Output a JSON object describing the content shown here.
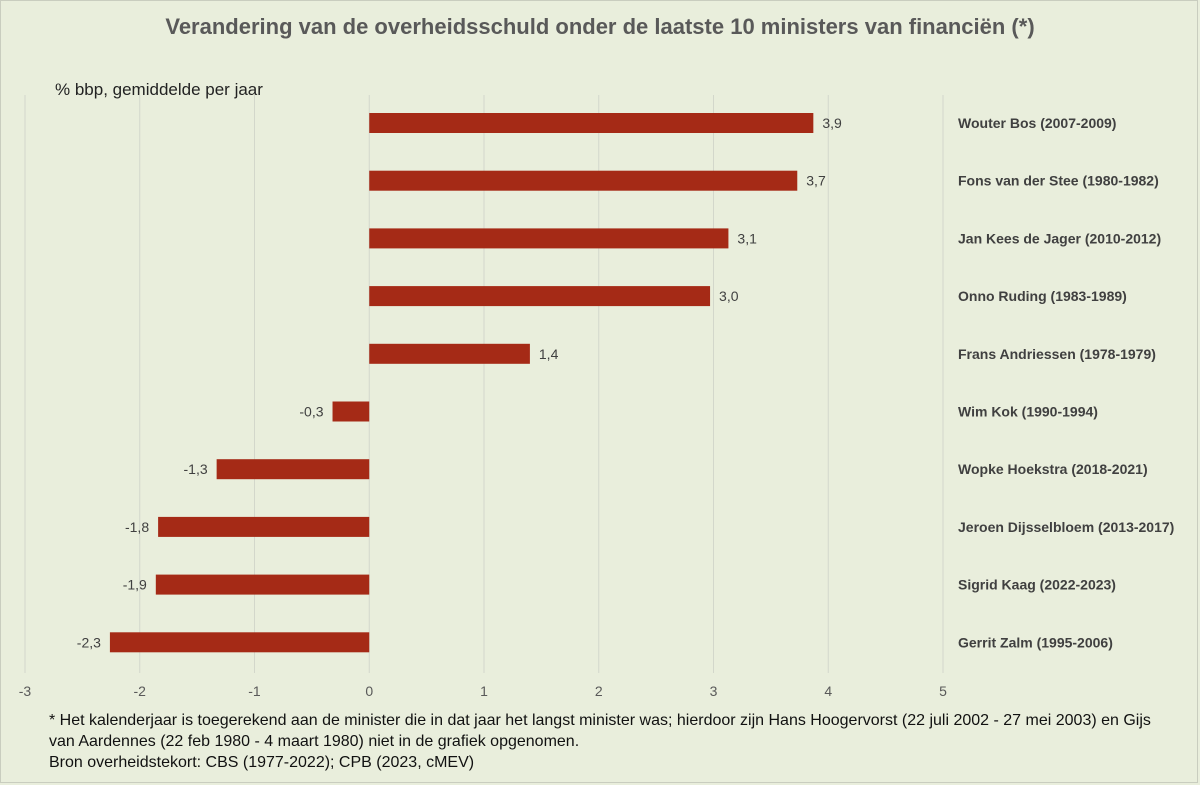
{
  "chart_data": {
    "type": "bar",
    "orientation": "horizontal",
    "title": "Verandering van de overheidsschuld onder de laatste 10 ministers van financiën (*)",
    "unit_label": "% bbp, gemiddelde per jaar",
    "categories": [
      "Wouter Bos (2007-2009)",
      "Fons van der Stee (1980-1982)",
      "Jan Kees de Jager (2010-2012)",
      "Onno Ruding (1983-1989)",
      "Frans Andriessen (1978-1979)",
      "Wim Kok (1990-1994)",
      "Wopke Hoekstra (2018-2021)",
      "Jeroen Dijsselbloem (2013-2017)",
      "Sigrid Kaag (2022-2023)",
      "Gerrit Zalm (1995-2006)"
    ],
    "values": [
      3.87,
      3.73,
      3.13,
      2.97,
      1.4,
      -0.32,
      -1.33,
      -1.84,
      -1.86,
      -2.26
    ],
    "value_labels": [
      "3,9",
      "3,7",
      "3,1",
      "3,0",
      "1,4",
      "-0,3",
      "-1,3",
      "-1,8",
      "-1,9",
      "-2,3"
    ],
    "xlim": [
      -3,
      5
    ],
    "xticks": [
      "-3",
      "-2",
      "-1",
      "0",
      "1",
      "2",
      "3",
      "4",
      "5"
    ],
    "grid": true,
    "bar_color": "#a52a16"
  },
  "footnote": {
    "line1": "* Het kalenderjaar is toegerekend aan de minister die in dat jaar het langst minister was; hierdoor zijn Hans Hoogervorst (22 juli 2002 - 27 mei 2003) en Gijs van Aardennes (22 feb 1980 - 4 maart 1980) niet in de grafiek opgenomen.",
    "line2": "Bron overheidstekort: CBS (1977-2022); CPB (2023, cMEV)"
  }
}
